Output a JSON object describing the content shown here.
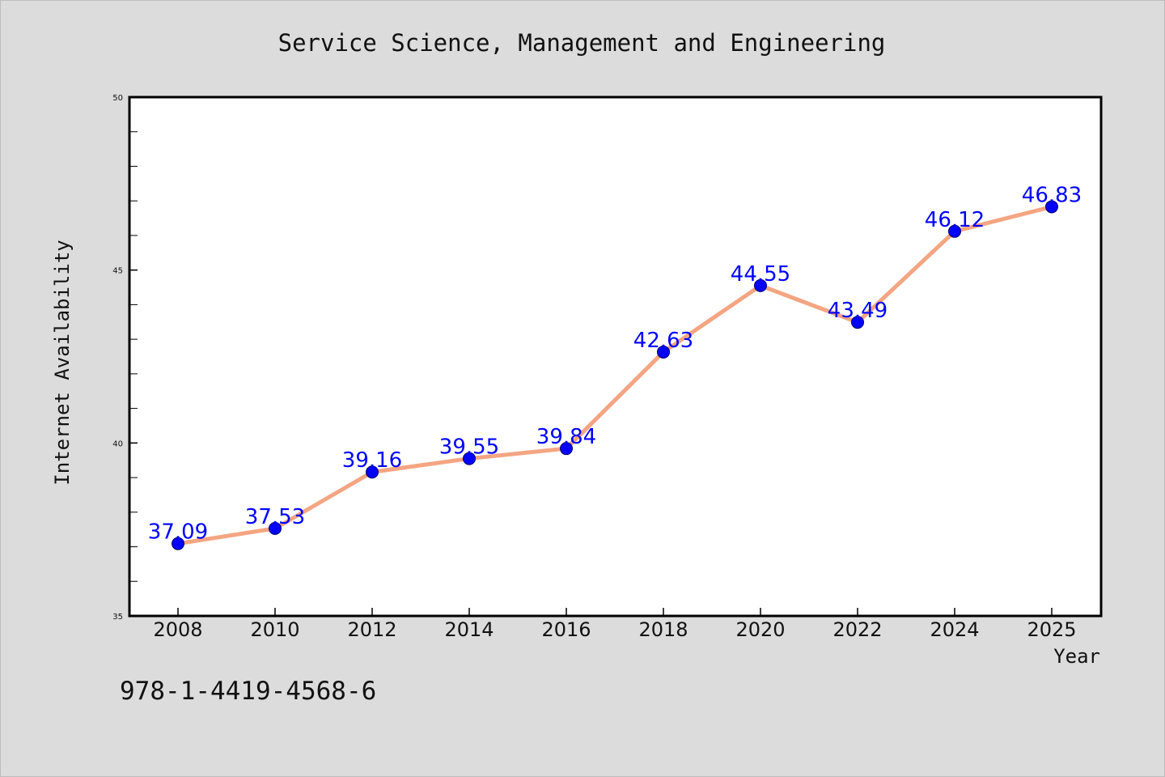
{
  "chart_data": {
    "type": "line",
    "title": "Service Science, Management and Engineering",
    "xlabel": "Year",
    "ylabel": "Internet Availability",
    "categories": [
      "2008",
      "2010",
      "2012",
      "2014",
      "2016",
      "2018",
      "2020",
      "2022",
      "2024",
      "2025"
    ],
    "series": [
      {
        "values": [
          37.09,
          37.53,
          39.16,
          39.55,
          39.84,
          42.63,
          44.55,
          43.49,
          46.12,
          46.83
        ],
        "labels": [
          "37.09",
          "37.53",
          "39.16",
          "39.55",
          "39.84",
          "42.63",
          "44.55",
          "43.49",
          "46.12",
          "46.83"
        ],
        "line_color": "#f4a582",
        "marker_color": "#0000ff"
      }
    ],
    "ylim": [
      35,
      50
    ],
    "yticks": [
      "35",
      "40",
      "45",
      "50"
    ],
    "grid": false,
    "legend": "none"
  },
  "footnote": "978-1-4419-4568-6",
  "colors": {
    "background": "#dcdcdc",
    "plot_background": "#ffffff",
    "label_color": "#0000ff"
  }
}
